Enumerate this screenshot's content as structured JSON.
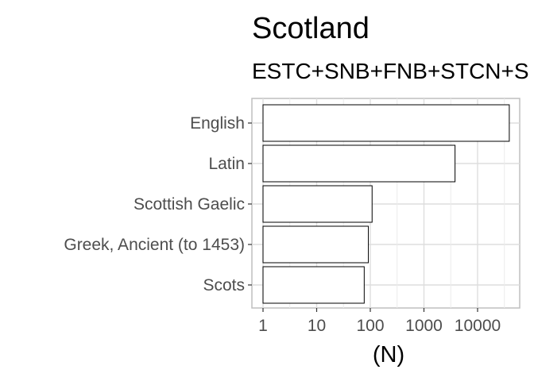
{
  "chart_data": {
    "type": "bar",
    "orientation": "horizontal",
    "title": "Scotland",
    "subtitle": "ESTC+SNB+FNB+STCN+S",
    "xlabel": "(N)",
    "ylabel": "",
    "x_scale": "log10",
    "x_ticks": [
      "1",
      "10",
      "100",
      "1000",
      "10000"
    ],
    "xlim": [
      1,
      50000
    ],
    "grid": true,
    "legend": "none",
    "bar_fill": "#ffffff",
    "bar_stroke": "#000000",
    "categories": [
      "English",
      "Latin",
      "Scottish Gaelic",
      "Greek, Ancient (to 1453)",
      "Scots"
    ],
    "values": [
      39000,
      3800,
      108,
      92,
      77
    ]
  }
}
